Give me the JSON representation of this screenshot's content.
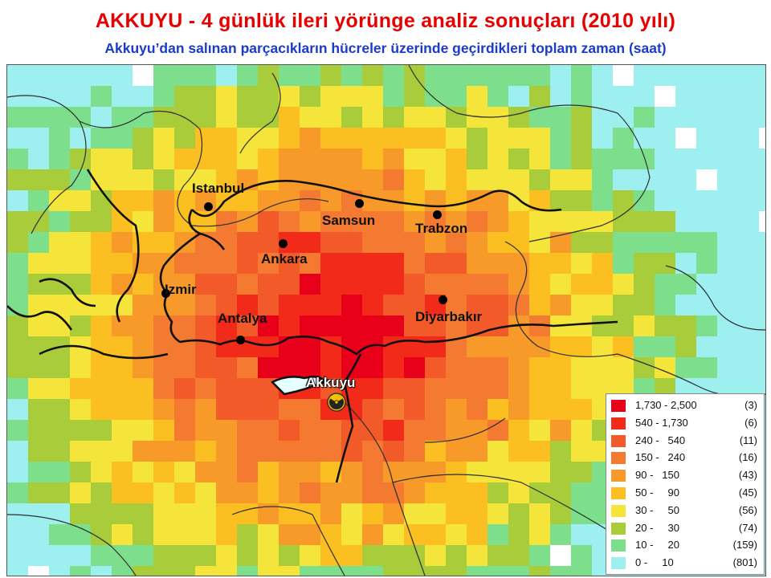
{
  "header": {
    "title": "AKKUYU - 4 günlük ileri yörünge analiz sonuçları (2010 yılı)",
    "subtitle": "Akkuyu’dan salınan parçacıkların hücreler üzerinde geçirdikleri toplam zaman (saat)"
  },
  "cities": [
    {
      "name": "Istanbul",
      "icon": "city-dot"
    },
    {
      "name": "Samsun",
      "icon": "city-dot"
    },
    {
      "name": "Trabzon",
      "icon": "city-dot"
    },
    {
      "name": "Ankara",
      "icon": "city-dot"
    },
    {
      "name": "Izmir",
      "icon": "city-dot"
    },
    {
      "name": "Antalya",
      "icon": "city-dot"
    },
    {
      "name": "Diyarbakır",
      "icon": "city-dot"
    }
  ],
  "source_site": {
    "name": "Akkuyu",
    "icon": "radiation-icon"
  },
  "legend": [
    {
      "range": "1,730 - 2,500",
      "count": "(3)",
      "color": "#e8001a"
    },
    {
      "range": "540 - 1,730",
      "count": "(6)",
      "color": "#f22a1a"
    },
    {
      "range": "240 -   540",
      "count": "(11)",
      "color": "#f25a2a"
    },
    {
      "range": "150 -   240",
      "count": "(16)",
      "color": "#f47a32"
    },
    {
      "range": "90 -   150",
      "count": "(43)",
      "color": "#f79a2a"
    },
    {
      "range": "50 -     90",
      "count": "(45)",
      "color": "#fbbf22"
    },
    {
      "range": "30 -     50",
      "count": "(56)",
      "color": "#f5e43a"
    },
    {
      "range": "20 -     30",
      "count": "(74)",
      "color": "#a8cc3a"
    },
    {
      "range": "10 -     20",
      "count": "(159)",
      "color": "#7dde8c"
    },
    {
      "range": "0 -     10",
      "count": "(801)",
      "color": "#9ef0f0"
    }
  ]
}
